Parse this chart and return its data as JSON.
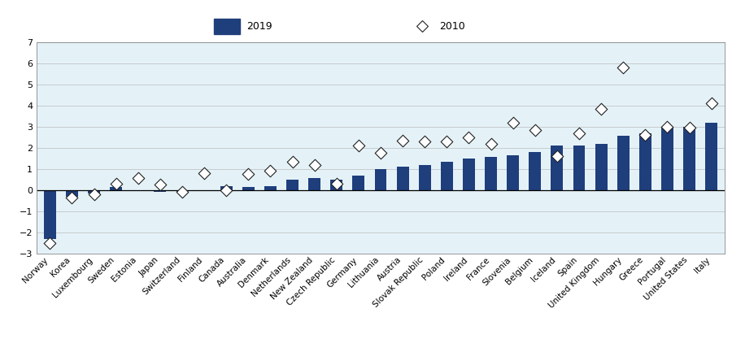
{
  "categories": [
    "Norway",
    "Korea",
    "Luxembourg",
    "Sweden",
    "Estonia",
    "Japan",
    "Switzerland",
    "Finland",
    "Canada",
    "Australia",
    "Denmark",
    "Netherlands",
    "New Zealand",
    "Czech Republic",
    "Germany",
    "Lithuania",
    "Austria",
    "Slovak Republic",
    "Poland",
    "Ireland",
    "France",
    "Slovenia",
    "Belgium",
    "Iceland",
    "Spain",
    "United Kingdom",
    "Hungary",
    "Greece",
    "Portugal",
    "United States",
    "Italy"
  ],
  "bars_2019": [
    -2.3,
    -0.3,
    -0.15,
    0.15,
    -0.05,
    -0.1,
    -0.1,
    0.0,
    0.2,
    0.15,
    0.2,
    0.5,
    0.55,
    0.5,
    0.7,
    1.0,
    1.1,
    1.2,
    1.35,
    1.5,
    1.55,
    1.65,
    1.8,
    2.1,
    2.1,
    2.2,
    2.55,
    2.7,
    2.95,
    3.0,
    3.2
  ],
  "diamonds_2010": [
    -2.5,
    -0.35,
    -0.2,
    0.3,
    0.55,
    0.25,
    -0.1,
    0.8,
    0.0,
    0.75,
    0.9,
    1.35,
    1.2,
    0.3,
    2.1,
    1.75,
    2.35,
    2.3,
    2.3,
    2.5,
    2.2,
    3.2,
    2.85,
    1.6,
    2.7,
    3.85,
    5.8,
    2.6,
    3.0,
    2.95,
    4.1
  ],
  "bar_color": "#1f3e7c",
  "diamond_facecolor": "#ffffff",
  "diamond_edgecolor": "#222222",
  "plot_bg": "#e4f2f8",
  "fig_bg": "#ffffff",
  "legend_bg": "#d8d8d8",
  "ylim": [
    -3,
    7
  ],
  "yticks": [
    -3,
    -2,
    -1,
    0,
    1,
    2,
    3,
    4,
    5,
    6,
    7
  ],
  "grid_color": "#bbbbbb",
  "legend_bar_label": "2019",
  "legend_diamond_label": "2010",
  "bar_width": 0.55,
  "diamond_size": 55,
  "diamond_lw": 0.8,
  "tick_fontsize": 7.5,
  "ytick_fontsize": 8
}
